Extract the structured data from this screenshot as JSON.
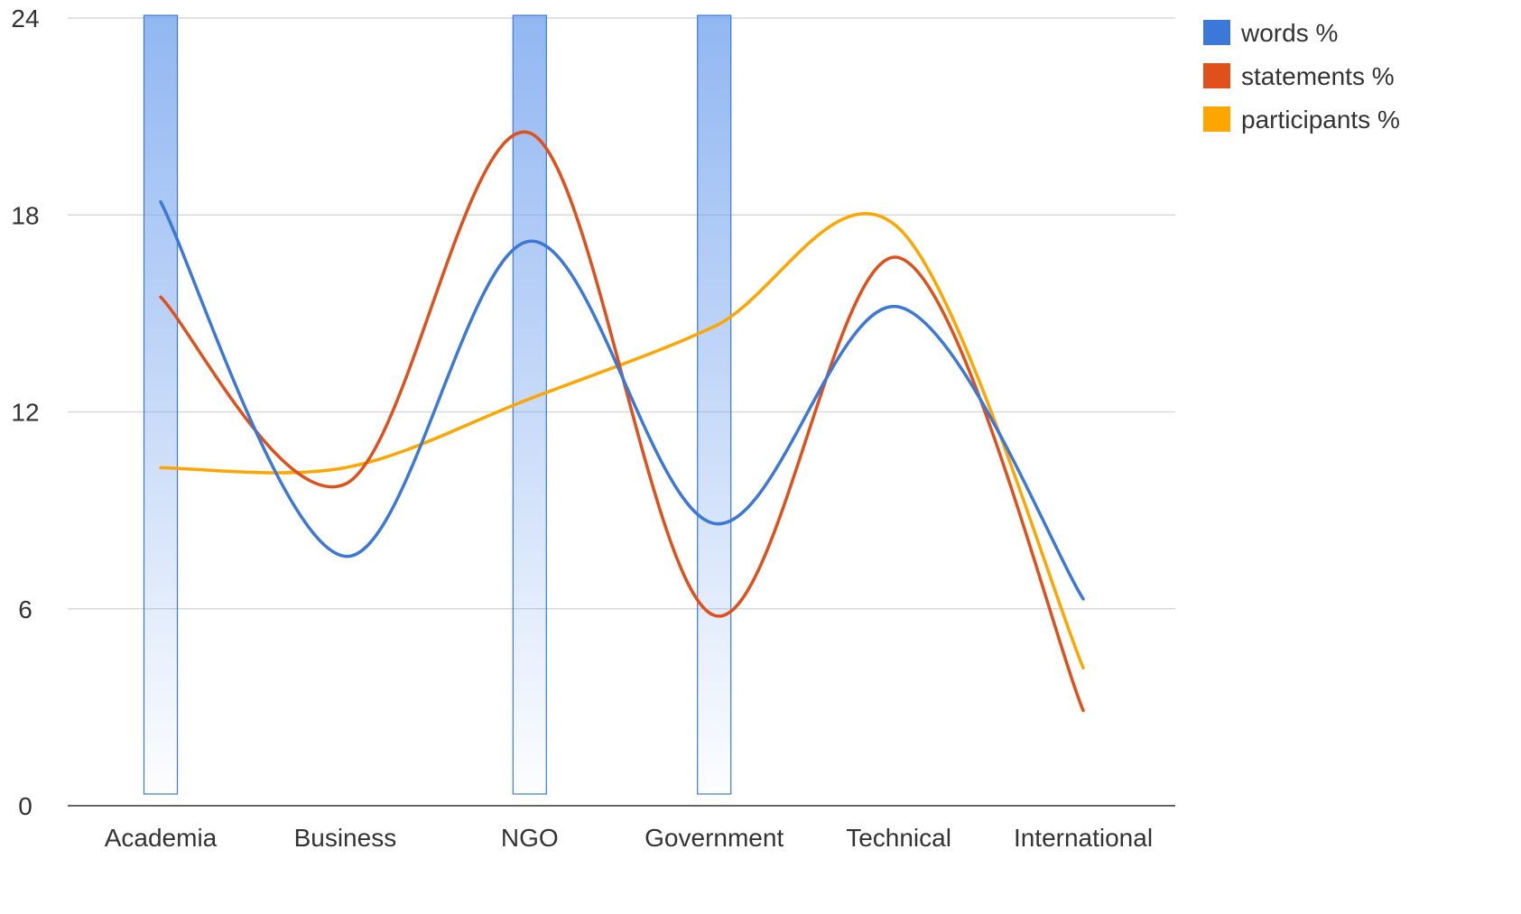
{
  "chart_data": {
    "type": "line",
    "categories": [
      "Academia",
      "Business",
      "NGO",
      "Government",
      "Technical",
      "International"
    ],
    "y_ticks": [
      "0",
      "6",
      "12",
      "18",
      "24"
    ],
    "ylim": [
      0,
      24
    ],
    "grid": true,
    "legend_position": "top-right",
    "series": [
      {
        "name": "words %",
        "values": [
          18.4,
          7.6,
          17.2,
          8.6,
          15.2,
          6.3
        ],
        "color": "#3c78d8"
      },
      {
        "name": "statements %",
        "values": [
          15.5,
          9.8,
          20.5,
          5.8,
          16.7,
          2.9
        ],
        "color": "#e0501b"
      },
      {
        "name": "participants %",
        "values": [
          10.3,
          10.3,
          12.4,
          14.6,
          17.6,
          4.2
        ],
        "color": "#ffa500"
      }
    ],
    "highlight_bands": {
      "categories": [
        "Academia",
        "NGO",
        "Government"
      ],
      "color": "#7eaaf0"
    }
  }
}
